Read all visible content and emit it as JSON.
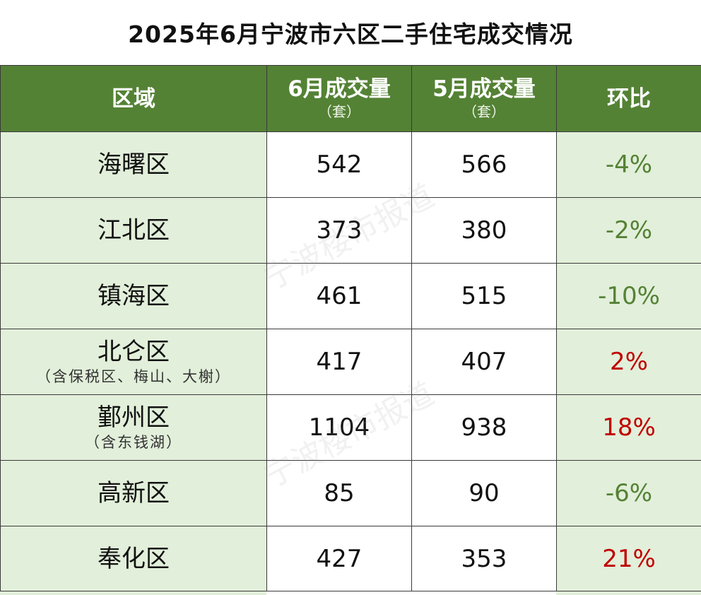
{
  "title": "2025年6月宁波市六区二手住宅成交情况",
  "header": {
    "region": "区域",
    "june": "6月成交量",
    "june_unit": "（套）",
    "may": "5月成交量",
    "may_unit": "（套）",
    "change": "环比"
  },
  "rows": [
    {
      "name": "海曙区",
      "note": "",
      "june": "542",
      "may": "566",
      "change": "-4%",
      "trend": "down"
    },
    {
      "name": "江北区",
      "note": "",
      "june": "373",
      "may": "380",
      "change": "-2%",
      "trend": "down"
    },
    {
      "name": "镇海区",
      "note": "",
      "june": "461",
      "may": "515",
      "change": "-10%",
      "trend": "down"
    },
    {
      "name": "北仑区",
      "note": "（含保税区、梅山、大榭）",
      "june": "417",
      "may": "407",
      "change": "2%",
      "trend": "up"
    },
    {
      "name": "鄞州区",
      "note": "（含东钱湖）",
      "june": "1104",
      "may": "938",
      "change": "18%",
      "trend": "up"
    },
    {
      "name": "高新区",
      "note": "",
      "june": "85",
      "may": "90",
      "change": "-6%",
      "trend": "down"
    },
    {
      "name": "奉化区",
      "note": "",
      "june": "427",
      "may": "353",
      "change": "21%",
      "trend": "up"
    }
  ],
  "watermark": "宁波楼市报道",
  "colors": {
    "header_bg": "#548235",
    "region_bg": "#e2efda",
    "decrease": "#548235",
    "increase": "#c00000"
  }
}
